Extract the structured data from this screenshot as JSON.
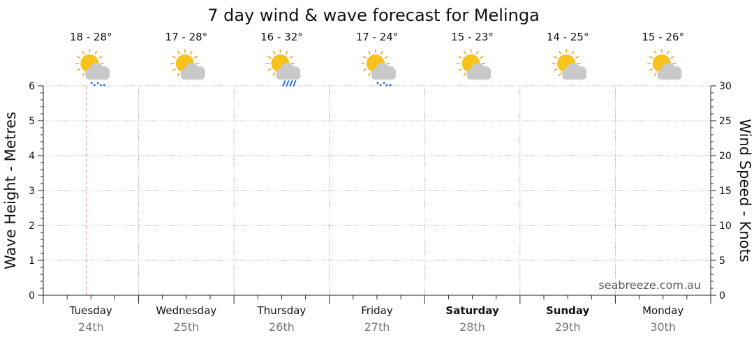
{
  "chart_data": {
    "type": "line",
    "title": "7 day wind & wave forecast for Melinga",
    "y_left": {
      "label": "Wave Height - Metres",
      "range": [
        0,
        6
      ],
      "ticks": [
        0,
        1,
        2,
        3,
        4,
        5,
        6
      ]
    },
    "y_right": {
      "label": "Wind Speed - Knots",
      "range": [
        0,
        30
      ],
      "ticks": [
        0,
        5,
        10,
        15,
        20,
        25,
        30
      ]
    },
    "days": [
      {
        "day": "Tuesday",
        "date": "24th",
        "temp": "18 - 28°",
        "weather": "showers-icon",
        "bold": false
      },
      {
        "day": "Wednesday",
        "date": "25th",
        "temp": "17 - 28°",
        "weather": "partly-cloudy-icon",
        "bold": false
      },
      {
        "day": "Thursday",
        "date": "26th",
        "temp": "16 - 32°",
        "weather": "rain-icon",
        "bold": false
      },
      {
        "day": "Friday",
        "date": "27th",
        "temp": "17 - 24°",
        "weather": "showers-icon",
        "bold": false
      },
      {
        "day": "Saturday",
        "date": "28th",
        "temp": "15 - 23°",
        "weather": "partly-cloudy-icon",
        "bold": true
      },
      {
        "day": "Sunday",
        "date": "29th",
        "temp": "14 - 25°",
        "weather": "partly-cloudy-icon",
        "bold": true
      },
      {
        "day": "Monday",
        "date": "30th",
        "temp": "15 - 26°",
        "weather": "partly-cloudy-icon",
        "bold": false
      }
    ],
    "current_time_marker": {
      "day_index": 0,
      "fraction_of_day": 0.45
    },
    "grid": true,
    "series": []
  },
  "credit": "seabreeze.com.au",
  "colors": {
    "sun": "#f7c21c",
    "sun_rays": "#f0a81c",
    "cloud": "#c9c9c9",
    "rain": "#2a6fd6",
    "now_marker": "#f0a090",
    "grid": "#888888"
  }
}
